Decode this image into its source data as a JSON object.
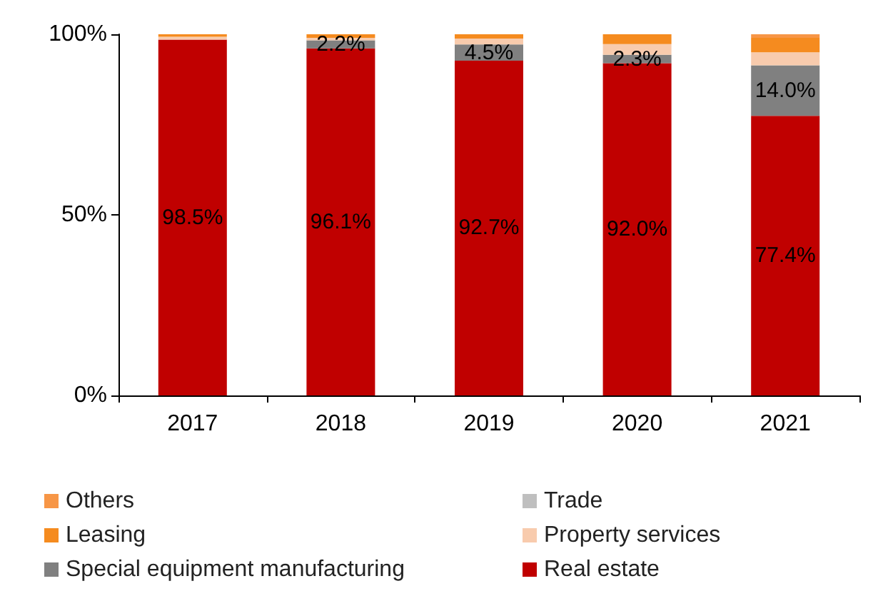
{
  "chart_data": {
    "type": "bar",
    "stacked": true,
    "categories": [
      "2017",
      "2018",
      "2019",
      "2020",
      "2021"
    ],
    "series": [
      {
        "name": "Real estate",
        "color": "#c00000",
        "values": [
          98.5,
          96.1,
          92.7,
          92.0,
          77.4
        ],
        "value_labels": [
          "98.5%",
          "96.1%",
          "92.7%",
          "92.0%",
          "77.4%"
        ]
      },
      {
        "name": "Special equipment manufacturing",
        "color": "#808080",
        "values": [
          0,
          2.2,
          4.5,
          2.3,
          14.0
        ],
        "value_labels": [
          null,
          "2.2%",
          "4.5%",
          "2.3%",
          "14.0%"
        ]
      },
      {
        "name": "Property services",
        "color": "#f8cbad",
        "values": [
          0.8,
          0.7,
          1.6,
          3.0,
          3.6
        ]
      },
      {
        "name": "Leasing",
        "color": "#f58b1f",
        "values": [
          0.7,
          1.0,
          1.2,
          2.7,
          4.0
        ]
      },
      {
        "name": "Trade",
        "color": "#bfbfbf",
        "values": [
          0,
          0,
          0,
          0,
          0
        ]
      },
      {
        "name": "Others",
        "color": "#f79646",
        "values": [
          0,
          0,
          0,
          0,
          1.0
        ]
      }
    ],
    "ylim": [
      0,
      100
    ],
    "yticks": [
      {
        "value": 0,
        "label": "0%"
      },
      {
        "value": 50,
        "label": "50%"
      },
      {
        "value": 100,
        "label": "100%"
      }
    ],
    "grid": false,
    "legend": "bottom"
  }
}
